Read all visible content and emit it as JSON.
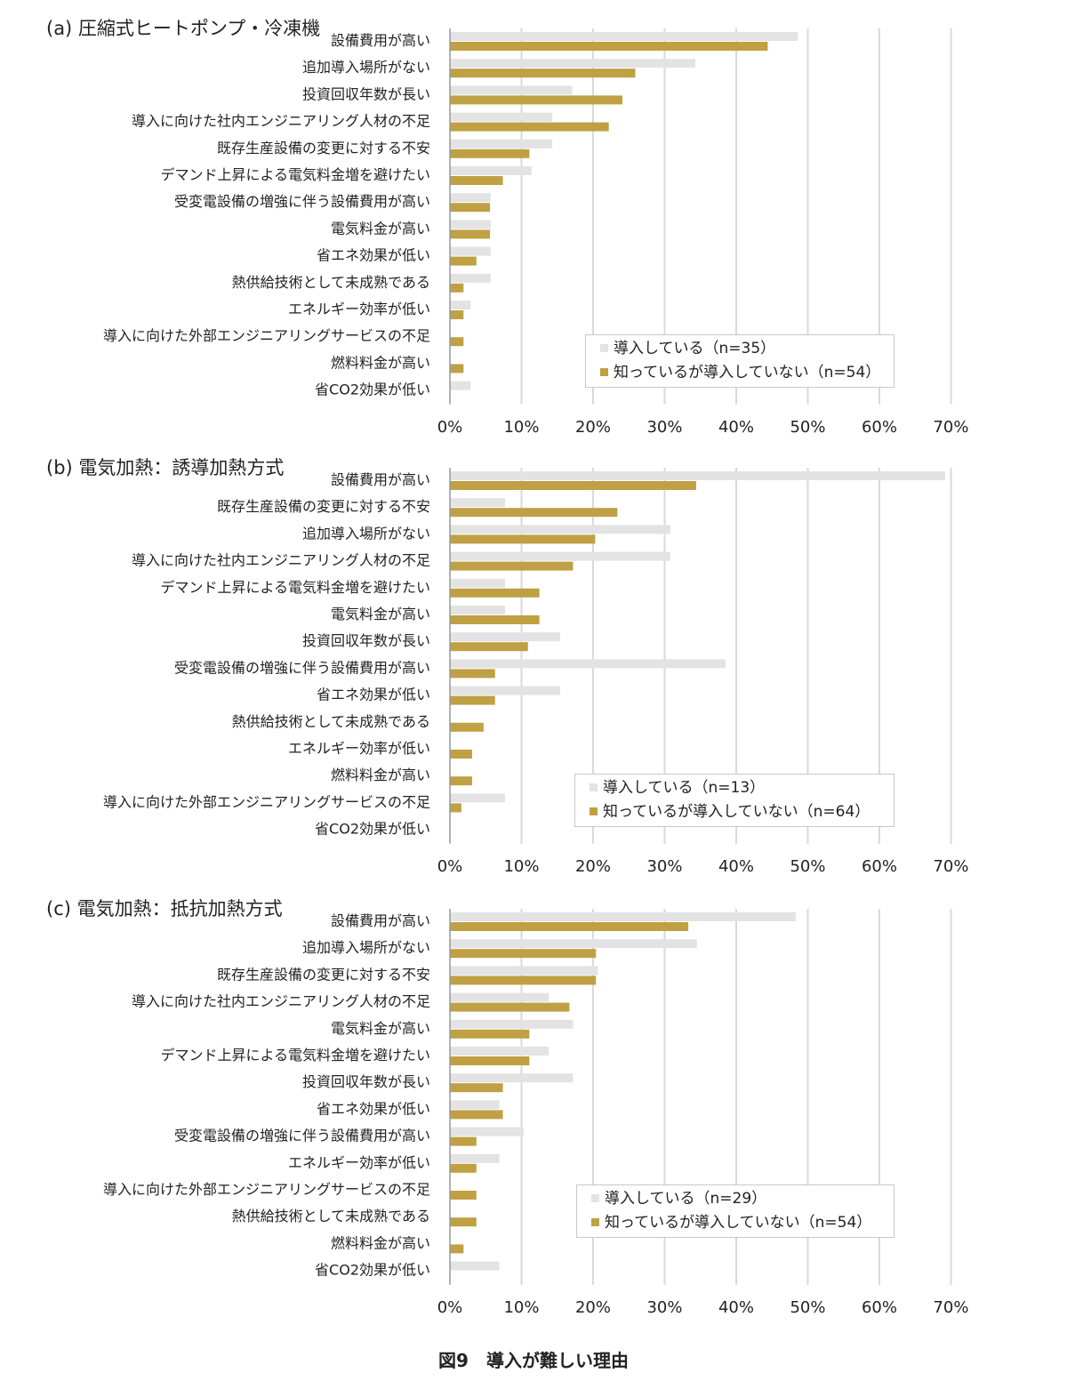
{
  "figure_caption": "図9　導入が難しい理由",
  "colors": {
    "introduced": "#e3e3e3",
    "not_introduced": "#bfa043",
    "grid": "#d9d9d9",
    "axis": "#999999"
  },
  "chart_data": [
    {
      "type": "bar",
      "orientation": "horizontal",
      "title": "(a) 圧縮式ヒートポンプ・冷凍機",
      "categories": [
        "設備費用が高い",
        "追加導入場所がない",
        "投資回収年数が長い",
        "導入に向けた社内エンジニアリング人材の不足",
        "既存生産設備の変更に対する不安",
        "デマンド上昇による電気料金増を避けたい",
        "受変電設備の増強に伴う設備費用が高い",
        "電気料金が高い",
        "省エネ効果が低い",
        "熱供給技術として未成熟である",
        "エネルギー効率が低い",
        "導入に向けた外部エンジニアリングサービスの不足",
        "燃料料金が高い",
        "省CO2効果が低い"
      ],
      "series": [
        {
          "name": "導入している（n=35）",
          "values": [
            48.6,
            34.3,
            17.1,
            14.3,
            14.3,
            11.4,
            5.7,
            5.7,
            5.7,
            5.7,
            2.9,
            0,
            0,
            2.9
          ]
        },
        {
          "name": "知っているが導入していない（n=54）",
          "values": [
            44.4,
            25.9,
            24.1,
            22.2,
            11.1,
            7.4,
            5.6,
            5.6,
            3.7,
            1.9,
            1.9,
            1.9,
            1.9,
            0
          ]
        }
      ],
      "xlim": [
        0,
        70
      ],
      "xticks": [
        "0%",
        "10%",
        "20%",
        "30%",
        "40%",
        "50%",
        "60%",
        "70%"
      ],
      "grid": true,
      "legend_position": "lower-right"
    },
    {
      "type": "bar",
      "orientation": "horizontal",
      "title": "(b) 電気加熱：誘導加熱方式",
      "categories": [
        "設備費用が高い",
        "既存生産設備の変更に対する不安",
        "追加導入場所がない",
        "導入に向けた社内エンジニアリング人材の不足",
        "デマンド上昇による電気料金増を避けたい",
        "電気料金が高い",
        "投資回収年数が長い",
        "受変電設備の増強に伴う設備費用が高い",
        "省エネ効果が低い",
        "熱供給技術として未成熟である",
        "エネルギー効率が低い",
        "燃料料金が高い",
        "導入に向けた外部エンジニアリングサービスの不足",
        "省CO2効果が低い"
      ],
      "series": [
        {
          "name": "導入している（n=13）",
          "values": [
            69.2,
            7.7,
            30.8,
            30.8,
            7.7,
            7.7,
            15.4,
            38.5,
            15.4,
            0,
            0,
            0,
            7.7,
            0
          ]
        },
        {
          "name": "知っているが導入していない（n=64）",
          "values": [
            34.4,
            23.4,
            20.3,
            17.2,
            12.5,
            12.5,
            10.9,
            6.3,
            6.3,
            4.7,
            3.1,
            3.1,
            1.6,
            0
          ]
        }
      ],
      "xlim": [
        0,
        70
      ],
      "xticks": [
        "0%",
        "10%",
        "20%",
        "30%",
        "40%",
        "50%",
        "60%",
        "70%"
      ],
      "grid": true,
      "legend_position": "lower-right"
    },
    {
      "type": "bar",
      "orientation": "horizontal",
      "title": "(c) 電気加熱：抵抗加熱方式",
      "categories": [
        "設備費用が高い",
        "追加導入場所がない",
        "既存生産設備の変更に対する不安",
        "導入に向けた社内エンジニアリング人材の不足",
        "電気料金が高い",
        "デマンド上昇による電気料金増を避けたい",
        "投資回収年数が長い",
        "省エネ効果が低い",
        "受変電設備の増強に伴う設備費用が高い",
        "エネルギー効率が低い",
        "導入に向けた外部エンジニアリングサービスの不足",
        "熱供給技術として未成熟である",
        "燃料料金が高い",
        "省CO2効果が低い"
      ],
      "series": [
        {
          "name": "導入している（n=29）",
          "values": [
            48.3,
            34.5,
            20.7,
            13.8,
            17.2,
            13.8,
            17.2,
            6.9,
            10.3,
            6.9,
            0,
            0,
            0,
            6.9
          ]
        },
        {
          "name": "知っているが導入していない（n=54）",
          "values": [
            33.3,
            20.4,
            20.4,
            16.7,
            11.1,
            11.1,
            7.4,
            7.4,
            3.7,
            3.7,
            3.7,
            3.7,
            1.9,
            0
          ]
        }
      ],
      "xlim": [
        0,
        70
      ],
      "xticks": [
        "0%",
        "10%",
        "20%",
        "30%",
        "40%",
        "50%",
        "60%",
        "70%"
      ],
      "grid": true,
      "legend_position": "lower-right"
    }
  ]
}
